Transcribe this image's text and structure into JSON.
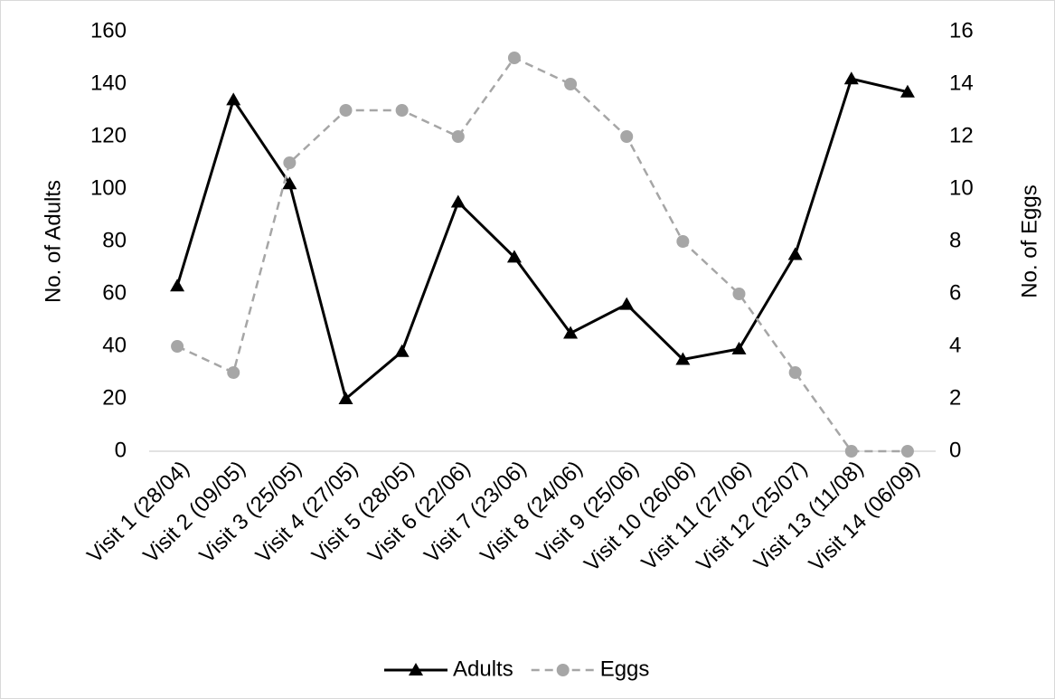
{
  "chart_data": {
    "type": "line",
    "categories": [
      "Visit 1 (28/04)",
      "Visit 2 (09/05)",
      "Visit 3 (25/05)",
      "Visit 4 (27/05)",
      "Visit 5 (28/05)",
      "Visit 6 (22/06)",
      "Visit 7 (23/06)",
      "Visit 8 (24/06)",
      "Visit 9 (25/06)",
      "Visit 10 (26/06)",
      "Visit 11 (27/06)",
      "Visit 12 (25/07)",
      "Visit 13 (11/08)",
      "Visit 14 (06/09)"
    ],
    "series": [
      {
        "name": "Adults",
        "color": "#000000",
        "marker": "triangle",
        "dash": false,
        "values": [
          63,
          134,
          102,
          20,
          38,
          95,
          74,
          45,
          56,
          35,
          39,
          75,
          142,
          137
        ]
      },
      {
        "name": "Eggs",
        "color": "#a6a6a6",
        "marker": "circle",
        "dash": true,
        "axis": "y2",
        "values": [
          4,
          3,
          11,
          13,
          13,
          12,
          15,
          14,
          12,
          8,
          6,
          3,
          0,
          0
        ]
      }
    ],
    "ylabel": "No. of Adults",
    "y2label": "No. of Eggs",
    "ylim": [
      0,
      160
    ],
    "yticks": [
      0,
      20,
      40,
      60,
      80,
      100,
      120,
      140,
      160
    ],
    "y2lim": [
      0,
      16
    ],
    "y2ticks": [
      0,
      2,
      4,
      6,
      8,
      10,
      12,
      14,
      16
    ],
    "grid": false,
    "legend": "bottom"
  }
}
